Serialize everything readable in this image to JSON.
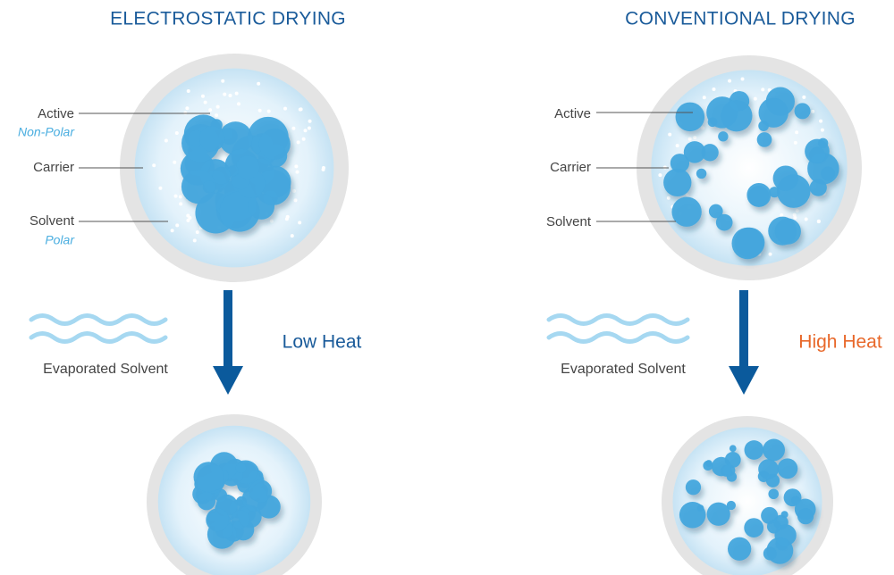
{
  "panels": [
    {
      "title": "ELECTROSTATIC DRYING",
      "labels": [
        {
          "name": "Active",
          "note": "Non-Polar"
        },
        {
          "name": "Carrier"
        },
        {
          "name": "Solvent",
          "note": "Polar"
        }
      ],
      "evaporated": "Evaporated Solvent",
      "heat": "Low Heat"
    },
    {
      "title": "CONVENTIONAL DRYING",
      "labels": [
        {
          "name": "Active"
        },
        {
          "name": "Carrier"
        },
        {
          "name": "Solvent"
        }
      ],
      "evaporated": "Evaporated Solvent",
      "heat": "High Heat"
    }
  ]
}
